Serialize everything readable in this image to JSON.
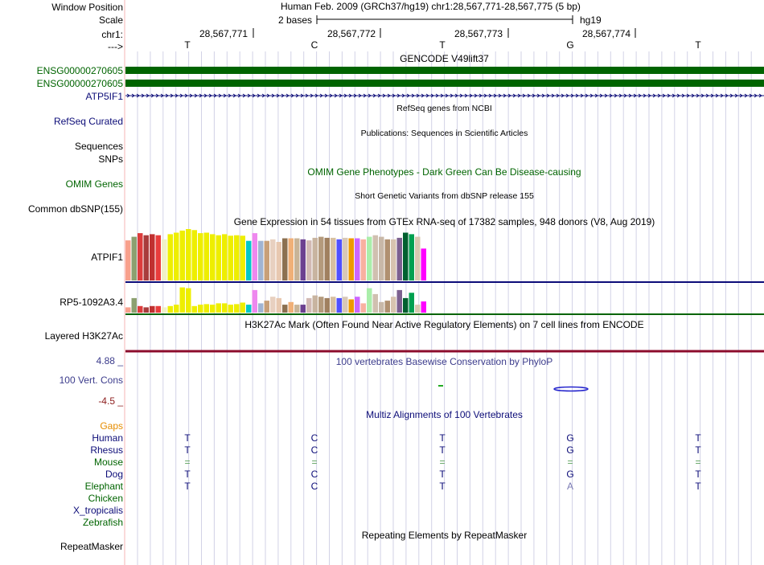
{
  "header": {
    "window_position_label": "Window Position",
    "assembly_position": "Human Feb. 2009 (GRCh37/hg19)   chr1:28,567,771-28,567,775 (5 bp)",
    "scale_label": "Scale",
    "scale_text": "2 bases",
    "scale_db": "hg19",
    "chrom_label": "chr1:",
    "direction_label": "--->",
    "coordinates": [
      "28,567,771",
      "28,567,772",
      "28,567,773",
      "28,567,774"
    ],
    "bases": [
      "T",
      "C",
      "T",
      "G",
      "T"
    ]
  },
  "tracks": {
    "gencode": {
      "title": "GENCODE V49lift37",
      "items": [
        "ENSG00000270605",
        "ENSG00000270605",
        "ATP5IF1"
      ],
      "colors": [
        "#006400",
        "#006400",
        "#0c0c78"
      ]
    },
    "refseq": {
      "title": "RefSeq genes from NCBI",
      "label": "RefSeq Curated"
    },
    "publications": {
      "title": "Publications: Sequences in Scientific Articles",
      "labels": [
        "Sequences",
        "SNPs"
      ]
    },
    "omim": {
      "title": "OMIM Gene Phenotypes - Dark Green Can Be Disease-causing",
      "label": "OMIM Genes"
    },
    "dbsnp": {
      "title": "Short Genetic Variants from dbSNP release 155",
      "label": "Common dbSNP(155)"
    },
    "gtex": {
      "title": "Gene Expression in 54 tissues from GTEx RNA-seq of 17382 samples, 948 donors (V8, Aug 2019)",
      "genes": [
        "ATPIF1",
        "RP5-1092A3.4"
      ],
      "colors": [
        "#f8a08c",
        "#8ca070",
        "#dc3c3c",
        "#a83c3c",
        "#c03030",
        "#e83c3c",
        "#f0f0c8",
        "#eeee00",
        "#eeee00",
        "#eeee00",
        "#eeee00",
        "#eeee00",
        "#eeee00",
        "#eeee00",
        "#eeee00",
        "#eeee00",
        "#eeee00",
        "#eeee00",
        "#eeee00",
        "#eeee00",
        "#00c8c8",
        "#ee88ee",
        "#a0b4d2",
        "#c8a078",
        "#e8d0c0",
        "#e8c8b0",
        "#8c7050",
        "#f0b078",
        "#c8b498",
        "#6c4090",
        "#d2b9b4",
        "#c8b4a0",
        "#b49a7c",
        "#a08060",
        "#d8c0a0",
        "#5050ff",
        "#d8c8b8",
        "#ee9900",
        "#cc66ff",
        "#f8b0a0",
        "#aaeeaa",
        "#d0c0b0",
        "#c8b8a8",
        "#b09070",
        "#d8c4b0",
        "#7c6090",
        "#006030",
        "#00a050",
        "#d8c8b0",
        "#ff00ff"
      ],
      "values_atpif1": [
        0.78,
        0.85,
        0.92,
        0.88,
        0.9,
        0.88,
        0.8,
        0.9,
        0.93,
        0.97,
        1.0,
        0.98,
        0.92,
        0.93,
        0.9,
        0.88,
        0.9,
        0.87,
        0.88,
        0.87,
        0.77,
        0.92,
        0.77,
        0.77,
        0.8,
        0.75,
        0.82,
        0.82,
        0.82,
        0.8,
        0.78,
        0.83,
        0.85,
        0.83,
        0.83,
        0.8,
        0.83,
        0.82,
        0.82,
        0.8,
        0.85,
        0.88,
        0.85,
        0.8,
        0.8,
        0.83,
        0.93,
        0.9,
        0.85,
        0.62
      ],
      "values_rp5": [
        0.2,
        0.55,
        0.25,
        0.2,
        0.25,
        0.25,
        0.2,
        0.25,
        0.3,
        0.95,
        0.92,
        0.25,
        0.3,
        0.32,
        0.3,
        0.35,
        0.35,
        0.3,
        0.32,
        0.38,
        0.3,
        0.85,
        0.35,
        0.45,
        0.6,
        0.55,
        0.3,
        0.4,
        0.3,
        0.3,
        0.55,
        0.65,
        0.6,
        0.55,
        0.6,
        0.55,
        0.6,
        0.5,
        0.6,
        0.35,
        0.92,
        0.7,
        0.4,
        0.45,
        0.6,
        0.85,
        0.55,
        0.75,
        0.3,
        0.42
      ]
    },
    "h3k27ac": {
      "title": "H3K27Ac Mark (Often Found Near Active Regulatory Elements) on 7 cell lines from ENCODE",
      "label": "Layered H3K27Ac"
    },
    "conservation": {
      "title": "100 vertebrates Basewise Conservation by PhyloP",
      "label": "100 Vert. Cons",
      "ymax": "4.88 _",
      "ymin": "-4.5 _"
    },
    "multiz": {
      "title": "Multiz Alignments of 100 Vertebrates",
      "gaps_label": "Gaps",
      "species": [
        {
          "name": "Human",
          "bases": [
            "T",
            "C",
            "T",
            "G",
            "T"
          ],
          "color": "#0c0c78"
        },
        {
          "name": "Rhesus",
          "bases": [
            "T",
            "C",
            "T",
            "G",
            "T"
          ],
          "color": "#0c0c78"
        },
        {
          "name": "Mouse",
          "bases": [
            "=",
            "=",
            "=",
            "=",
            "="
          ],
          "color": "#006400"
        },
        {
          "name": "Dog",
          "bases": [
            "T",
            "C",
            "T",
            "G",
            "T"
          ],
          "color": "#0c0c78"
        },
        {
          "name": "Elephant",
          "bases": [
            "T",
            "C",
            "T",
            "A",
            "T"
          ],
          "color": "#006400"
        },
        {
          "name": "Chicken",
          "bases": [
            "",
            "",
            "",
            "",
            ""
          ],
          "color": "#006400"
        },
        {
          "name": "X_tropicalis",
          "bases": [
            "",
            "",
            "",
            "",
            ""
          ],
          "color": "#0c0c78"
        },
        {
          "name": "Zebrafish",
          "bases": [
            "",
            "",
            "",
            "",
            ""
          ],
          "color": "#006400"
        }
      ]
    },
    "repeatmasker": {
      "title": "Repeating Elements by RepeatMasker",
      "label": "RepeatMasker"
    }
  },
  "colors": {
    "green": "#006400",
    "navy": "#0c0c78",
    "conservation_blue": "#3c3c8c",
    "gaps_orange": "#e68c00",
    "sidebar_line": "#f5b4b4",
    "grid_line": "#d2d2e6",
    "h3k27ac_line": "#8c0c2c"
  }
}
